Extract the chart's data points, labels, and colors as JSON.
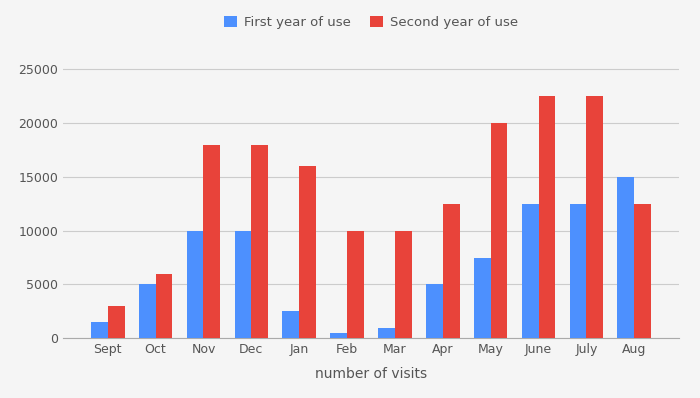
{
  "months": [
    "Sept",
    "Oct",
    "Nov",
    "Dec",
    "Jan",
    "Feb",
    "Mar",
    "Apr",
    "May",
    "June",
    "July",
    "Aug"
  ],
  "first_year": [
    1500,
    5000,
    10000,
    10000,
    2500,
    500,
    1000,
    5000,
    7500,
    12500,
    12500,
    15000
  ],
  "second_year": [
    3000,
    6000,
    18000,
    18000,
    16000,
    10000,
    10000,
    12500,
    20000,
    22500,
    22500,
    12500
  ],
  "blue_color": "#4d90fe",
  "red_color": "#e8433a",
  "legend_labels": [
    "First year of use",
    "Second year of use"
  ],
  "xlabel": "number of visits",
  "ylim": [
    0,
    27000
  ],
  "yticks": [
    0,
    5000,
    10000,
    15000,
    20000,
    25000
  ],
  "bar_width": 0.35,
  "background_color": "#f5f5f5",
  "grid_color": "#cccccc",
  "label_fontsize": 10,
  "tick_fontsize": 9
}
